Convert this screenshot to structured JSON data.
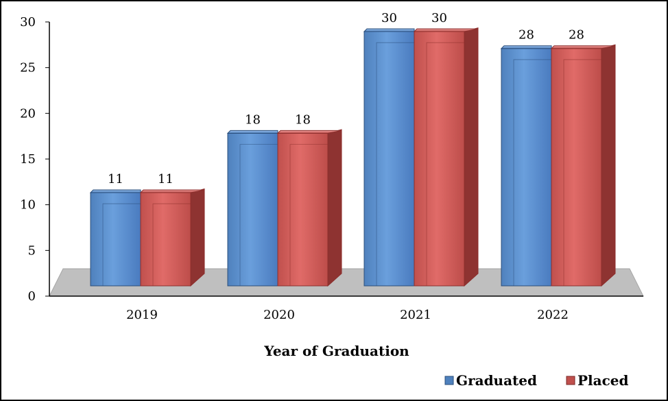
{
  "chart_data": {
    "type": "bar",
    "categories": [
      "2019",
      "2020",
      "2021",
      "2022"
    ],
    "series": [
      {
        "name": "Graduated",
        "values": [
          11,
          18,
          30,
          28
        ],
        "color": "#4f81bd"
      },
      {
        "name": "Placed",
        "values": [
          11,
          18,
          30,
          28
        ],
        "color": "#c0504d"
      }
    ],
    "xlabel": "Year of Graduation",
    "ylabel": "",
    "ylim": [
      0,
      30
    ],
    "yticks": [
      "0",
      "5",
      "10",
      "15",
      "20",
      "25",
      "30"
    ],
    "legend_position": "bottom-right",
    "grid": false,
    "style": "3d-clustered-column"
  }
}
